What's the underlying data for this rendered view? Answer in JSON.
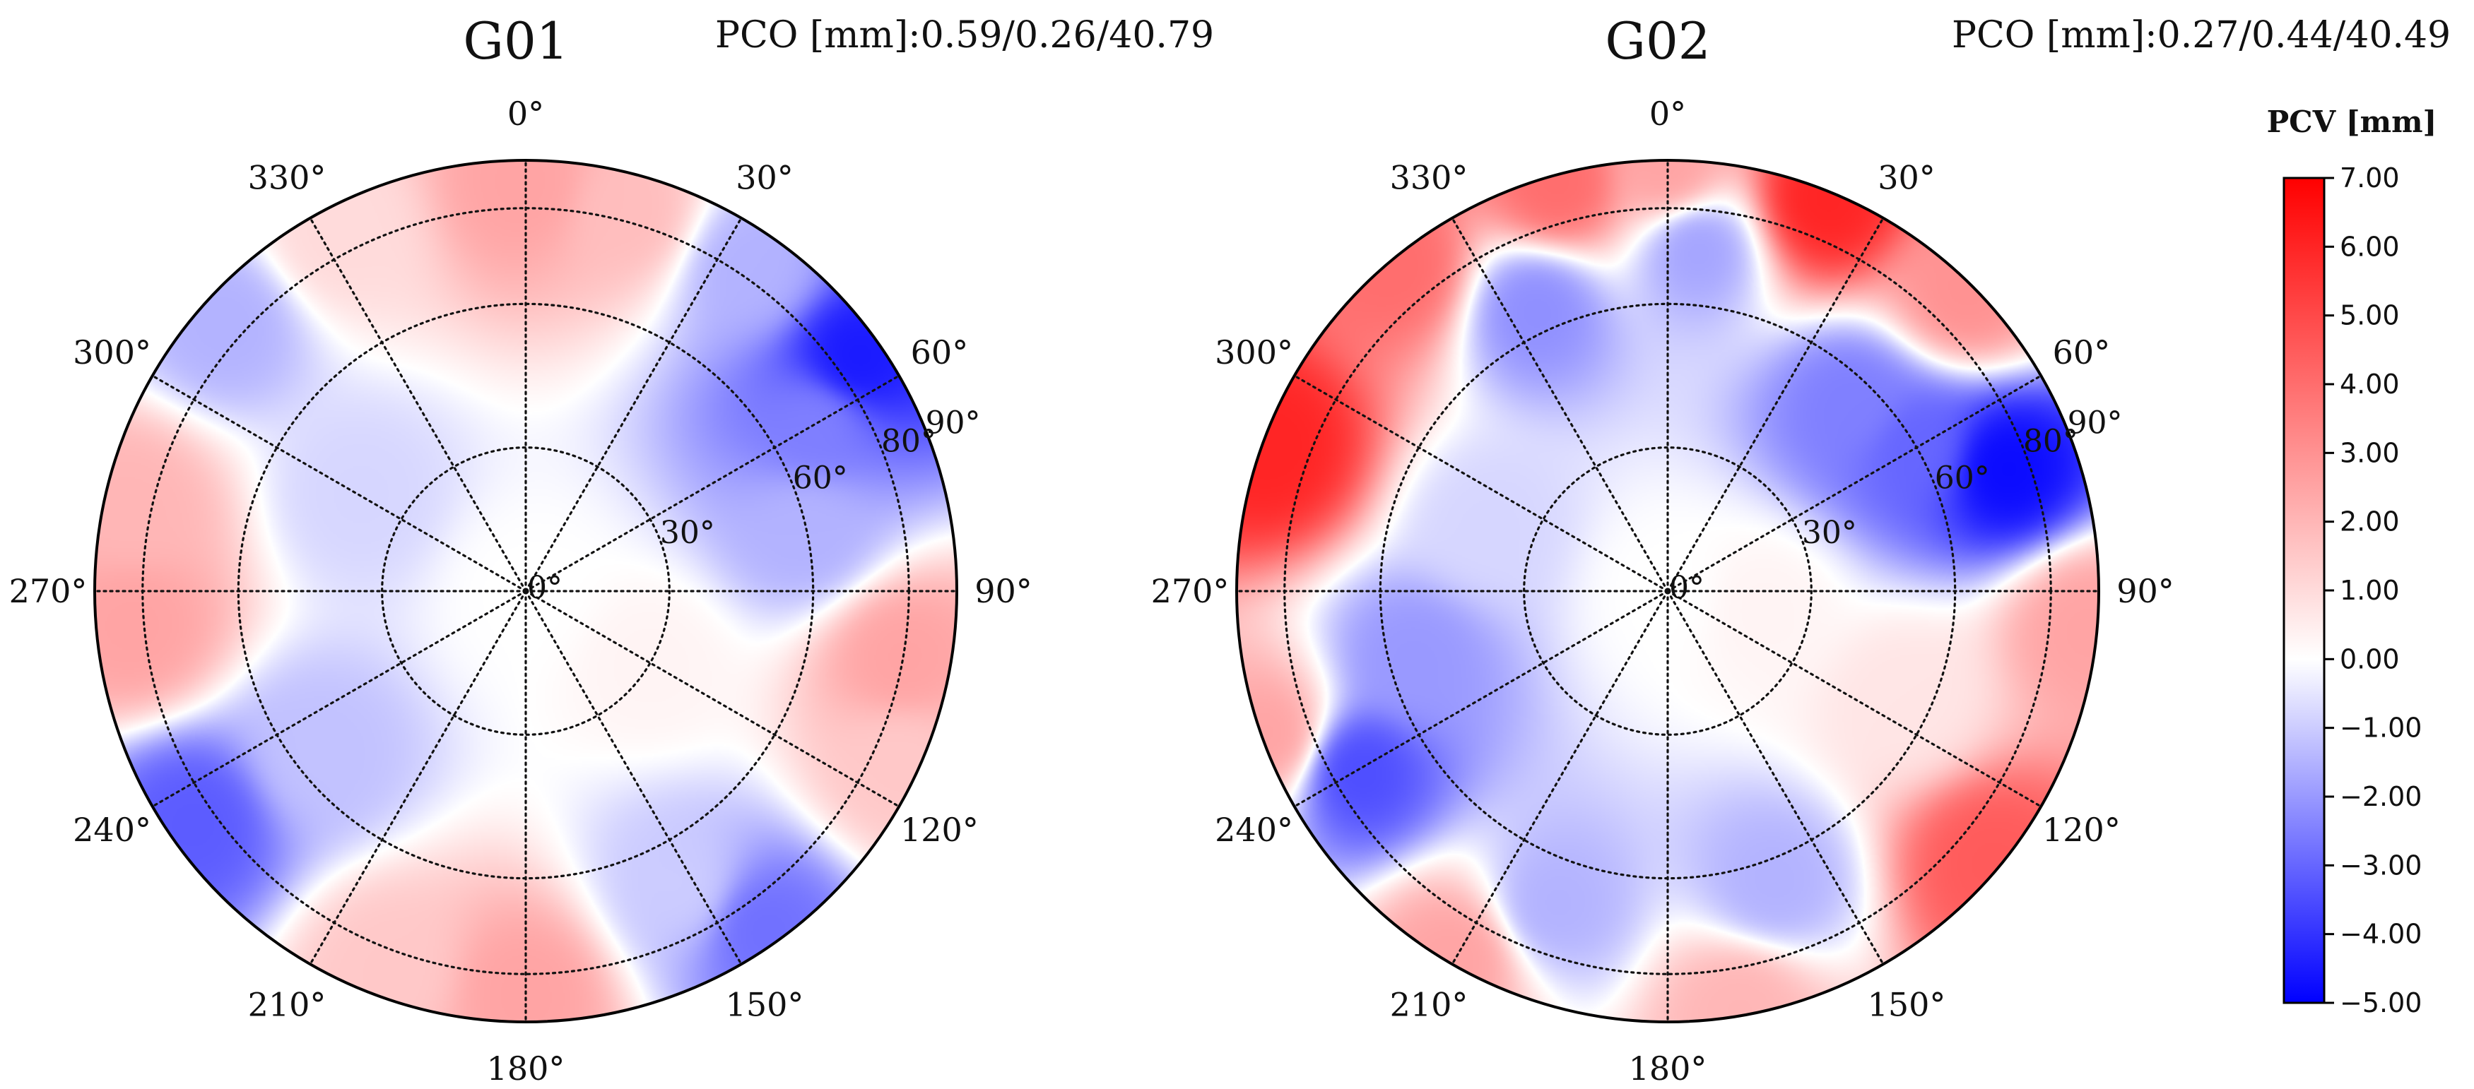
{
  "chart_data": [
    {
      "type": "heatmap",
      "projection": "polar",
      "title": "G01",
      "annotation": "PCO [mm]:0.59/0.26/40.79",
      "angle_labels": [
        "0°",
        "30°",
        "60°",
        "90°",
        "120°",
        "150°",
        "180°",
        "210°",
        "240°",
        "270°",
        "300°",
        "330°"
      ],
      "radial_ticks": [
        0,
        30,
        60,
        80,
        90
      ],
      "radial_labels": [
        "0°",
        "30°",
        "60°",
        "80°",
        "90°"
      ],
      "radial_label_angle_deg": 67.5,
      "nadir_max_deg": 90,
      "colormap": "bwr",
      "pcv_samples_mm": [
        {
          "az": 0,
          "nadir": 85,
          "value": 2.5
        },
        {
          "az": 15,
          "nadir": 82,
          "value": 1.8
        },
        {
          "az": 35,
          "nadir": 82,
          "value": -1.5
        },
        {
          "az": 55,
          "nadir": 84,
          "value": -4.5
        },
        {
          "az": 60,
          "nadir": 70,
          "value": -2.5
        },
        {
          "az": 78,
          "nadir": 60,
          "value": -1.5
        },
        {
          "az": 100,
          "nadir": 80,
          "value": 2.5
        },
        {
          "az": 115,
          "nadir": 86,
          "value": 1.5
        },
        {
          "az": 145,
          "nadir": 86,
          "value": -2.8
        },
        {
          "az": 152,
          "nadir": 70,
          "value": -1.0
        },
        {
          "az": 180,
          "nadir": 84,
          "value": 2.5
        },
        {
          "az": 200,
          "nadir": 84,
          "value": 1.5
        },
        {
          "az": 235,
          "nadir": 84,
          "value": -3.2
        },
        {
          "az": 232,
          "nadir": 55,
          "value": -1.2
        },
        {
          "az": 265,
          "nadir": 82,
          "value": 2.5
        },
        {
          "az": 282,
          "nadir": 84,
          "value": 2.0
        },
        {
          "az": 312,
          "nadir": 84,
          "value": -1.5
        },
        {
          "az": 332,
          "nadir": 84,
          "value": 1.0
        },
        {
          "az": 300,
          "nadir": 40,
          "value": -0.8
        },
        {
          "az": 120,
          "nadir": 30,
          "value": 0.3
        },
        {
          "az": 0,
          "nadir": 0,
          "value": 0.0
        }
      ]
    },
    {
      "type": "heatmap",
      "projection": "polar",
      "title": "G02",
      "annotation": "PCO [mm]:0.27/0.44/40.49",
      "angle_labels": [
        "0°",
        "30°",
        "60°",
        "90°",
        "120°",
        "150°",
        "180°",
        "210°",
        "240°",
        "270°",
        "300°",
        "330°"
      ],
      "radial_ticks": [
        0,
        30,
        60,
        80,
        90
      ],
      "radial_labels": [
        "0°",
        "30°",
        "60°",
        "80°",
        "90°"
      ],
      "radial_label_angle_deg": 67.5,
      "nadir_max_deg": 90,
      "colormap": "bwr",
      "pcv_samples_mm": [
        {
          "az": 0,
          "nadir": 88,
          "value": 2.5
        },
        {
          "az": 22,
          "nadir": 88,
          "value": 6.0
        },
        {
          "az": 45,
          "nadir": 88,
          "value": 3.0
        },
        {
          "az": 95,
          "nadir": 88,
          "value": 2.5
        },
        {
          "az": 130,
          "nadir": 88,
          "value": 4.5
        },
        {
          "az": 170,
          "nadir": 88,
          "value": 2.0
        },
        {
          "az": 210,
          "nadir": 88,
          "value": 2.5
        },
        {
          "az": 250,
          "nadir": 88,
          "value": 2.5
        },
        {
          "az": 290,
          "nadir": 88,
          "value": 6.0
        },
        {
          "az": 320,
          "nadir": 88,
          "value": 4.0
        },
        {
          "az": 345,
          "nadir": 88,
          "value": 4.0
        },
        {
          "az": 70,
          "nadir": 75,
          "value": -4.8
        },
        {
          "az": 60,
          "nadir": 60,
          "value": -3.0
        },
        {
          "az": 45,
          "nadir": 55,
          "value": -2.5
        },
        {
          "az": 5,
          "nadir": 72,
          "value": -1.8
        },
        {
          "az": 335,
          "nadir": 65,
          "value": -2.2
        },
        {
          "az": 240,
          "nadir": 75,
          "value": -3.5
        },
        {
          "az": 255,
          "nadir": 55,
          "value": -2.0
        },
        {
          "az": 200,
          "nadir": 70,
          "value": -1.5
        },
        {
          "az": 160,
          "nadir": 65,
          "value": -1.5
        },
        {
          "az": 115,
          "nadir": 55,
          "value": 0.7
        },
        {
          "az": 100,
          "nadir": 20,
          "value": 0.3
        },
        {
          "az": 290,
          "nadir": 40,
          "value": -0.8
        },
        {
          "az": 0,
          "nadir": 0,
          "value": 0.0
        }
      ]
    }
  ],
  "colorbar": {
    "label": "PCV [mm]",
    "min": -5.0,
    "max": 7.0,
    "center": 0.0,
    "ticks": [
      "7.00",
      "6.00",
      "5.00",
      "4.00",
      "3.00",
      "2.00",
      "1.00",
      "0.00",
      "−1.00",
      "−2.00",
      "−3.00",
      "−4.00",
      "−5.00"
    ],
    "colors": {
      "low": "#0000ff",
      "mid": "#ffffff",
      "high": "#ff0000"
    }
  }
}
